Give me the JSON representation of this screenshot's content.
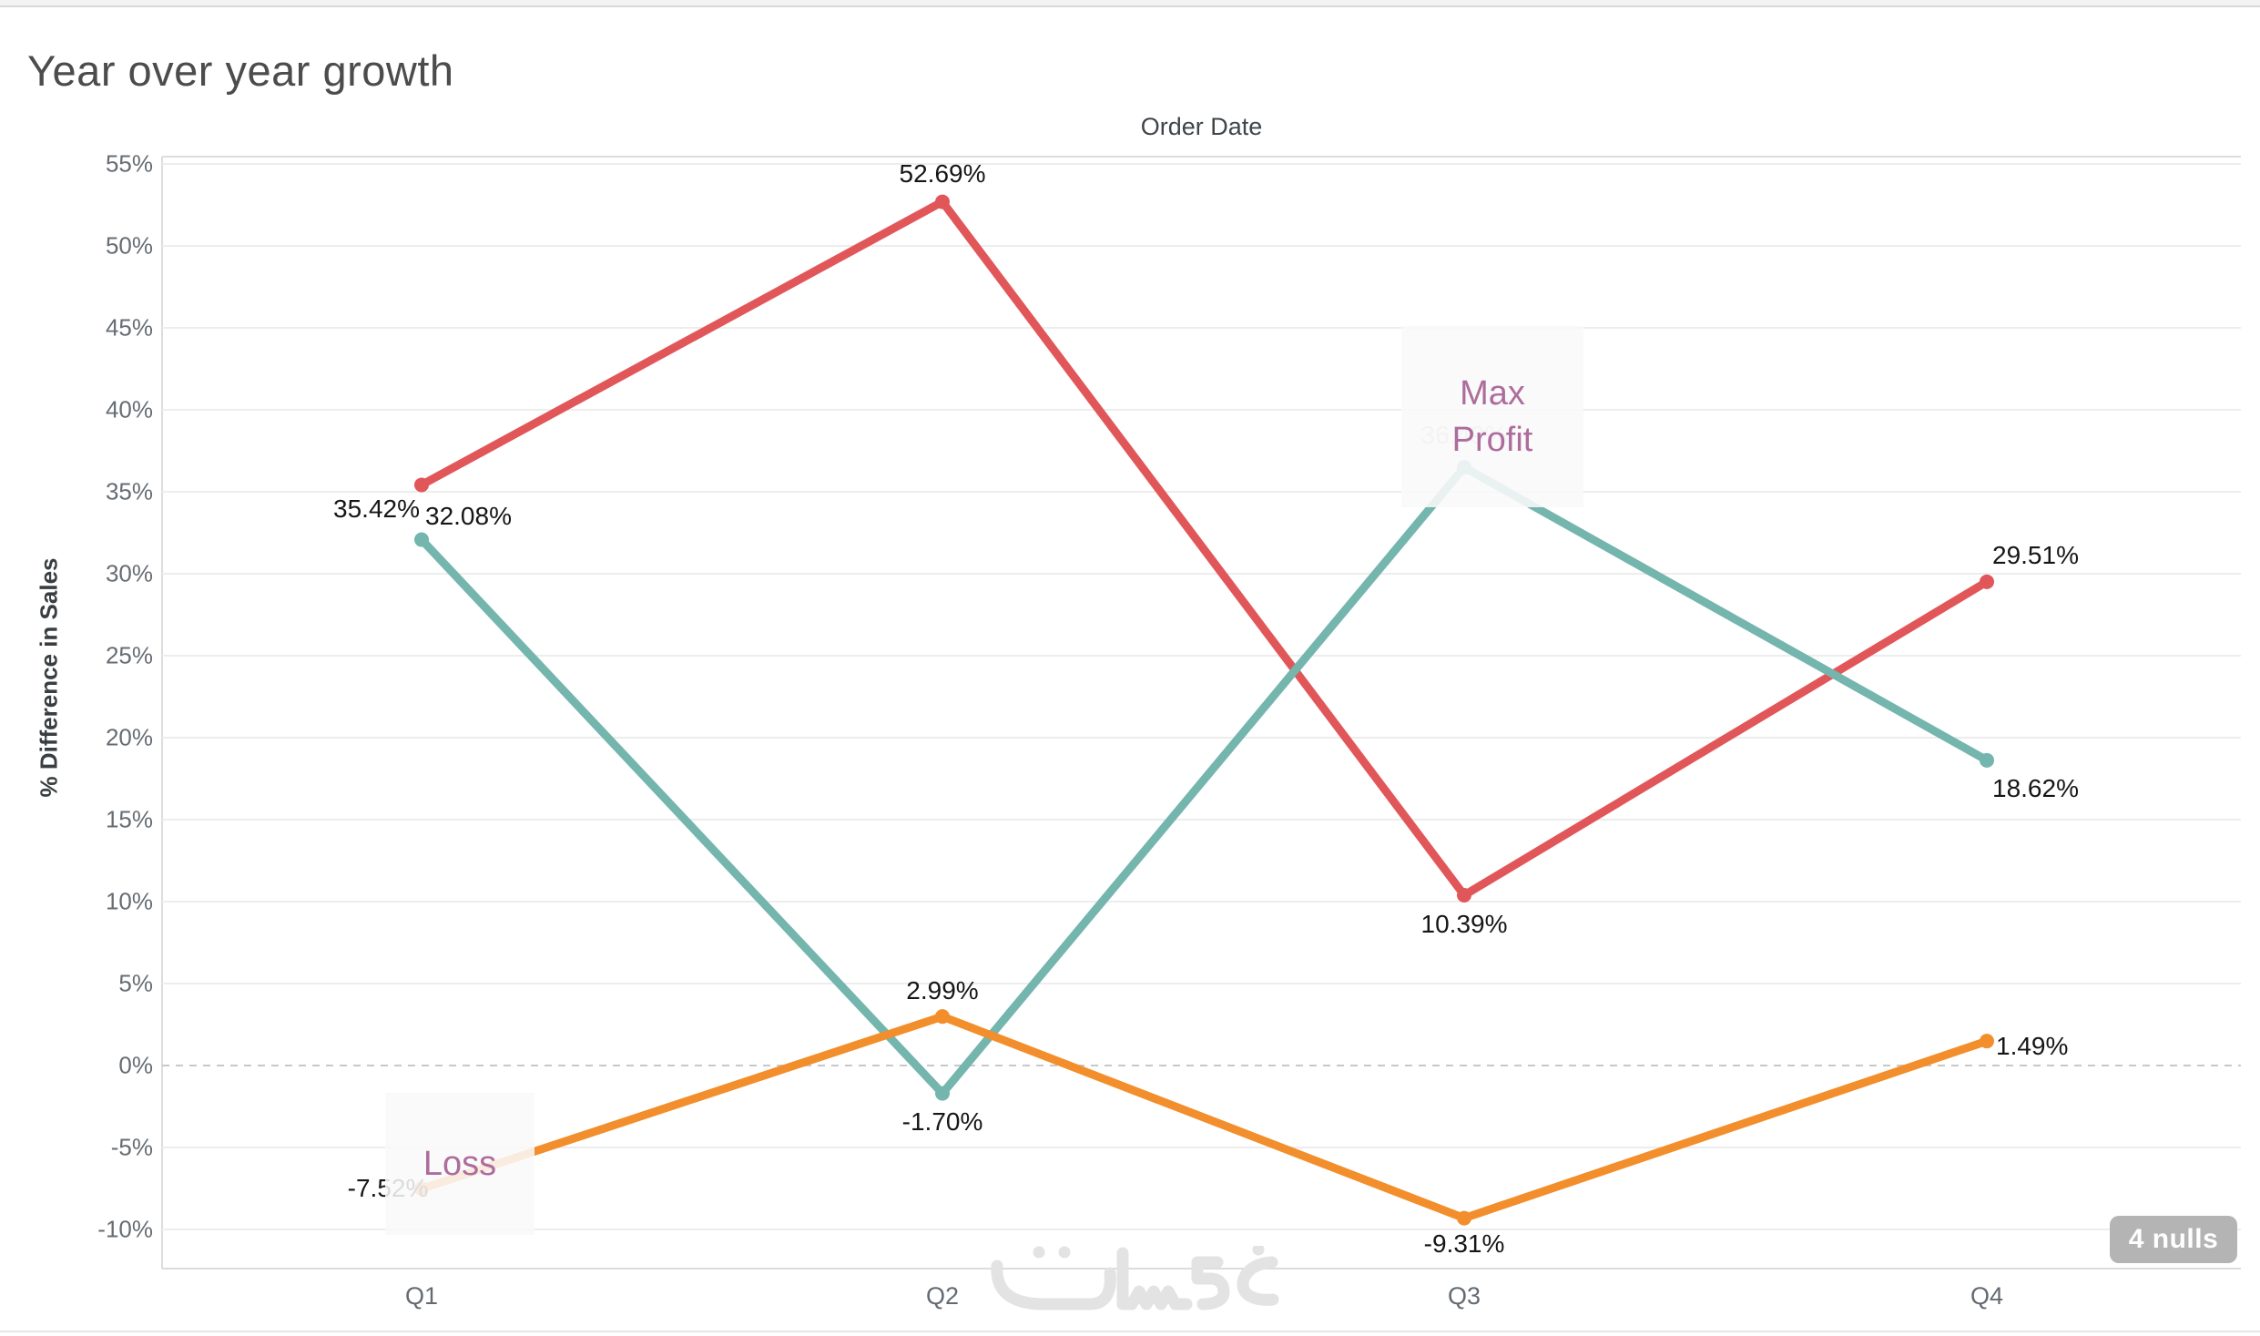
{
  "chart_data": {
    "type": "line",
    "title": "Year over year growth",
    "x_axis_title": "Order Date",
    "y_axis_title": "% Difference in Sales",
    "categories": [
      "Q1",
      "Q2",
      "Q3",
      "Q4"
    ],
    "y_ticks": [
      {
        "v": 55,
        "label": "55%"
      },
      {
        "v": 50,
        "label": "50%"
      },
      {
        "v": 45,
        "label": "45%"
      },
      {
        "v": 40,
        "label": "40%"
      },
      {
        "v": 35,
        "label": "35%"
      },
      {
        "v": 30,
        "label": "30%"
      },
      {
        "v": 25,
        "label": "25%"
      },
      {
        "v": 20,
        "label": "20%"
      },
      {
        "v": 15,
        "label": "15%"
      },
      {
        "v": 10,
        "label": "10%"
      },
      {
        "v": 5,
        "label": "5%"
      },
      {
        "v": 0,
        "label": "0%"
      },
      {
        "v": -5,
        "label": "-5%"
      },
      {
        "v": -10,
        "label": "-10%"
      }
    ],
    "ylim": [
      -12.4,
      55.4
    ],
    "grid": true,
    "zero_line": "dashed",
    "legend": "none",
    "series": [
      {
        "name": "red",
        "color": "#e15759",
        "values": [
          35.42,
          52.69,
          10.39,
          29.51
        ],
        "labels": [
          "35.42%",
          "52.69%",
          "10.39%",
          "29.51%"
        ]
      },
      {
        "name": "teal",
        "color": "#74b5ae",
        "values": [
          32.08,
          -1.7,
          36.49,
          18.62
        ],
        "labels": [
          "32.08%",
          "-1.70%",
          "36.49%",
          "18.62%"
        ]
      },
      {
        "name": "orange",
        "color": "#f28e2b",
        "values": [
          -7.52,
          2.99,
          -9.31,
          1.49
        ],
        "labels": [
          "-7.52%",
          "2.99%",
          "-9.31%",
          "1.49%"
        ]
      }
    ],
    "annotations": [
      {
        "text": "Max Profit"
      },
      {
        "text": "Loss"
      }
    ]
  },
  "badge": {
    "label": "4 nulls"
  },
  "watermark": {
    "text": "خمسات"
  },
  "colors": {
    "red": "#e15759",
    "teal": "#74b5ae",
    "orange": "#f28e2b",
    "grid": "#ededed",
    "axis": "#dcdcdc",
    "zero_line": "#c8c8c8",
    "annotation_text": "#ad6d9c",
    "badge_bg": "#b4b4b4",
    "muted_label": "#c6c6c6",
    "watermark": "#e3e3e3"
  }
}
